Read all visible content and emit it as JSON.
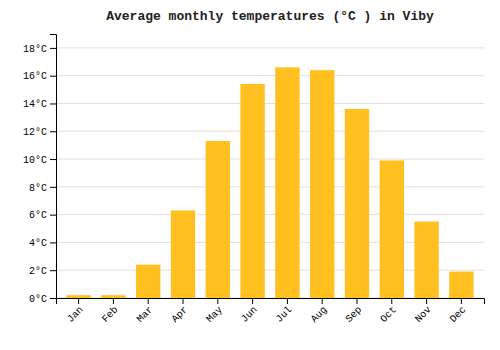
{
  "chart_data": {
    "type": "bar",
    "title": "Average monthly temperatures (°C ) in Viby",
    "categories": [
      "Jan",
      "Feb",
      "Mar",
      "Apr",
      "May",
      "Jun",
      "Jul",
      "Aug",
      "Sep",
      "Oct",
      "Nov",
      "Dec"
    ],
    "values": [
      0.2,
      0.2,
      2.4,
      6.3,
      11.3,
      15.4,
      16.6,
      16.4,
      13.6,
      9.9,
      5.5,
      1.9
    ],
    "color": "#FFC020",
    "ylim": [
      0,
      19
    ],
    "yticks": [
      {
        "value": 0,
        "label": "0°C"
      },
      {
        "value": 2,
        "label": "2°C"
      },
      {
        "value": 4,
        "label": "4°C"
      },
      {
        "value": 6,
        "label": "6°C"
      },
      {
        "value": 8,
        "label": "8°C"
      },
      {
        "value": 10,
        "label": "10°C"
      },
      {
        "value": 12,
        "label": "12°C"
      },
      {
        "value": 14,
        "label": "14°C"
      },
      {
        "value": 16,
        "label": "16°C"
      },
      {
        "value": 18,
        "label": "18°C"
      }
    ],
    "grid": true
  }
}
